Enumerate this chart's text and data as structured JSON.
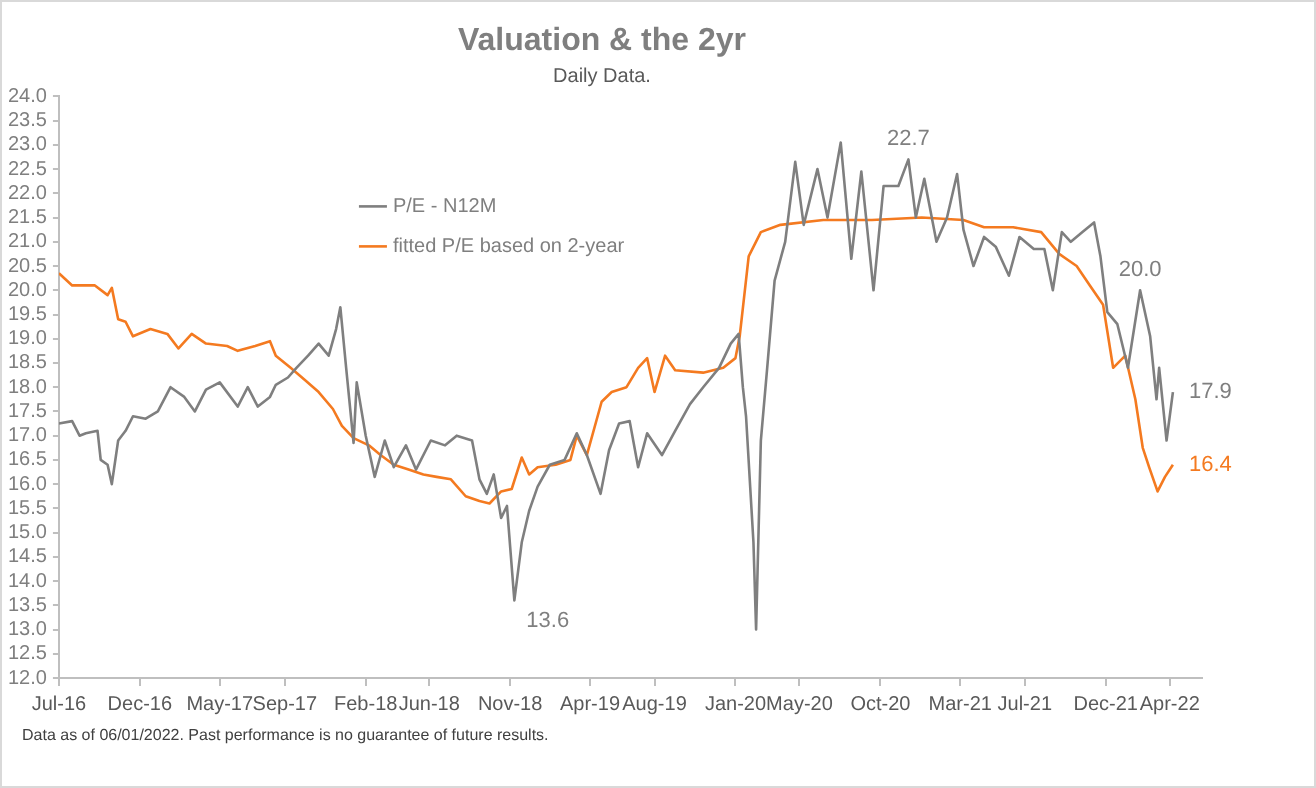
{
  "chart_data": {
    "type": "line",
    "title": "Valuation & the 2yr",
    "subtitle": "Daily Data.",
    "xlim": [
      "2016-07-01",
      "2022-06-01"
    ],
    "xticks": [
      {
        "value": "2016-07-01",
        "label": "Jul-16"
      },
      {
        "value": "2016-12-01",
        "label": "Dec-16"
      },
      {
        "value": "2017-05-01",
        "label": "May-17"
      },
      {
        "value": "2017-09-01",
        "label": "Sep-17"
      },
      {
        "value": "2018-02-01",
        "label": "Feb-18"
      },
      {
        "value": "2018-06-01",
        "label": "Jun-18"
      },
      {
        "value": "2018-11-01",
        "label": "Nov-18"
      },
      {
        "value": "2019-04-01",
        "label": "Apr-19"
      },
      {
        "value": "2019-08-01",
        "label": "Aug-19"
      },
      {
        "value": "2020-01-01",
        "label": "Jan-20"
      },
      {
        "value": "2020-05-01",
        "label": "May-20"
      },
      {
        "value": "2020-10-01",
        "label": "Oct-20"
      },
      {
        "value": "2021-03-01",
        "label": "Mar-21"
      },
      {
        "value": "2021-07-01",
        "label": "Jul-21"
      },
      {
        "value": "2021-12-01",
        "label": "Dec-21"
      },
      {
        "value": "2022-04-01",
        "label": "Apr-22"
      }
    ],
    "ylim": [
      12,
      24
    ],
    "yticks": [
      {
        "value": 12,
        "label": "12.0"
      },
      {
        "value": 12.5,
        "label": "12.5"
      },
      {
        "value": 13,
        "label": "13.0"
      },
      {
        "value": 13.5,
        "label": "13.5"
      },
      {
        "value": 14,
        "label": "14.0"
      },
      {
        "value": 14.5,
        "label": "14.5"
      },
      {
        "value": 15,
        "label": "15.0"
      },
      {
        "value": 15.5,
        "label": "15.5"
      },
      {
        "value": 16,
        "label": "16.0"
      },
      {
        "value": 16.5,
        "label": "16.5"
      },
      {
        "value": 17,
        "label": "17.0"
      },
      {
        "value": 17.5,
        "label": "17.5"
      },
      {
        "value": 18,
        "label": "18.0"
      },
      {
        "value": 18.5,
        "label": "18.5"
      },
      {
        "value": 19,
        "label": "19.0"
      },
      {
        "value": 19.5,
        "label": "19.5"
      },
      {
        "value": 20,
        "label": "20.0"
      },
      {
        "value": 20.5,
        "label": "20.5"
      },
      {
        "value": 21,
        "label": "21.0"
      },
      {
        "value": 21.5,
        "label": "21.5"
      },
      {
        "value": 22,
        "label": "22.0"
      },
      {
        "value": 22.5,
        "label": "22.5"
      },
      {
        "value": 23,
        "label": "23.0"
      },
      {
        "value": 23.5,
        "label": "23.5"
      },
      {
        "value": 24,
        "label": "24.0"
      }
    ],
    "grid": false,
    "legend": "top left",
    "marker": "none",
    "line_style": "solid",
    "series": [
      {
        "name": "P/E - N12M",
        "color": "#7f7f7f",
        "x": [
          "2016-07-01",
          "2016-07-26",
          "2016-08-09",
          "2016-08-21",
          "2016-09-12",
          "2016-09-18",
          "2016-10-01",
          "2016-10-09",
          "2016-10-21",
          "2016-11-04",
          "2016-11-18",
          "2016-12-12",
          "2017-01-04",
          "2017-01-28",
          "2017-02-23",
          "2017-03-15",
          "2017-04-05",
          "2017-05-01",
          "2017-06-04",
          "2017-06-23",
          "2017-07-12",
          "2017-08-04",
          "2017-08-15",
          "2017-09-07",
          "2017-09-23",
          "2017-10-15",
          "2017-11-04",
          "2017-11-23",
          "2017-12-07",
          "2017-12-15",
          "2017-12-26",
          "2018-01-09",
          "2018-01-15",
          "2018-02-01",
          "2018-02-18",
          "2018-03-09",
          "2018-03-26",
          "2018-04-18",
          "2018-05-07",
          "2018-06-04",
          "2018-07-01",
          "2018-07-23",
          "2018-08-21",
          "2018-09-04",
          "2018-09-18",
          "2018-10-01",
          "2018-10-15",
          "2018-10-26",
          "2018-11-09",
          "2018-11-23",
          "2018-12-07",
          "2018-12-23",
          "2019-01-15",
          "2019-02-12",
          "2019-03-07",
          "2019-03-26",
          "2019-04-21",
          "2019-05-07",
          "2019-05-26",
          "2019-06-15",
          "2019-07-01",
          "2019-07-18",
          "2019-08-15",
          "2019-09-09",
          "2019-10-07",
          "2019-11-01",
          "2019-12-01",
          "2019-12-23",
          "2020-01-07",
          "2020-01-15",
          "2020-01-21",
          "2020-02-04",
          "2020-02-09",
          "2020-02-18",
          "2020-03-01",
          "2020-03-15",
          "2020-04-04",
          "2020-04-23",
          "2020-05-09",
          "2020-06-04",
          "2020-06-23",
          "2020-07-18",
          "2020-08-07",
          "2020-08-26",
          "2020-09-18",
          "2020-10-07",
          "2020-11-04",
          "2020-11-23",
          "2020-12-07",
          "2020-12-23",
          "2021-01-15",
          "2021-02-04",
          "2021-02-23",
          "2021-03-07",
          "2021-03-26",
          "2021-04-15",
          "2021-05-07",
          "2021-06-01",
          "2021-06-21",
          "2021-07-18",
          "2021-08-07",
          "2021-08-23",
          "2021-09-09",
          "2021-09-26",
          "2021-10-18",
          "2021-11-09",
          "2021-11-21",
          "2021-12-04",
          "2021-12-23",
          "2022-01-12",
          "2022-02-04",
          "2022-02-23",
          "2022-03-07",
          "2022-03-12",
          "2022-03-26",
          "2022-04-07"
        ],
        "values": [
          17.25,
          17.3,
          17.0,
          17.05,
          17.1,
          16.5,
          16.4,
          16.0,
          16.9,
          17.1,
          17.4,
          17.35,
          17.5,
          18.0,
          17.8,
          17.5,
          17.95,
          18.1,
          17.6,
          18.0,
          17.6,
          17.8,
          18.05,
          18.2,
          18.4,
          18.65,
          18.9,
          18.65,
          19.2,
          19.65,
          18.4,
          16.85,
          18.1,
          17.0,
          16.15,
          16.9,
          16.35,
          16.8,
          16.3,
          16.9,
          16.8,
          17.0,
          16.9,
          16.1,
          15.8,
          16.2,
          15.3,
          15.55,
          13.6,
          14.8,
          15.45,
          15.95,
          16.4,
          16.5,
          17.05,
          16.6,
          15.8,
          16.7,
          17.25,
          17.3,
          16.35,
          17.05,
          16.6,
          17.1,
          17.65,
          18.0,
          18.4,
          18.9,
          19.1,
          18.0,
          17.4,
          14.8,
          13.0,
          16.9,
          18.4,
          20.2,
          21.0,
          22.65,
          21.35,
          22.5,
          21.5,
          23.05,
          20.65,
          22.45,
          20.0,
          22.15,
          22.15,
          22.7,
          21.5,
          22.3,
          21.0,
          21.5,
          22.4,
          21.25,
          20.5,
          21.1,
          20.9,
          20.3,
          21.1,
          20.85,
          20.85,
          20.0,
          21.2,
          21.0,
          21.2,
          21.4,
          20.7,
          19.55,
          19.3,
          18.4,
          20.0,
          19.05,
          17.75,
          18.4,
          16.9,
          17.9
        ]
      },
      {
        "name": "fitted P/E based on 2-year",
        "color": "#f47a20",
        "x": [
          "2016-07-01",
          "2016-07-26",
          "2016-09-07",
          "2016-10-01",
          "2016-10-09",
          "2016-10-21",
          "2016-11-04",
          "2016-11-18",
          "2016-12-21",
          "2017-01-22",
          "2017-02-12",
          "2017-03-09",
          "2017-04-05",
          "2017-05-15",
          "2017-06-04",
          "2017-07-07",
          "2017-08-04",
          "2017-08-15",
          "2017-09-12",
          "2017-10-09",
          "2017-11-04",
          "2017-12-01",
          "2017-12-18",
          "2018-01-09",
          "2018-02-07",
          "2018-03-01",
          "2018-03-26",
          "2018-04-23",
          "2018-05-21",
          "2018-06-15",
          "2018-07-12",
          "2018-08-09",
          "2018-09-04",
          "2018-09-23",
          "2018-10-15",
          "2018-11-04",
          "2018-11-23",
          "2018-12-07",
          "2018-12-23",
          "2019-01-26",
          "2019-02-23",
          "2019-03-07",
          "2019-03-26",
          "2019-04-23",
          "2019-05-12",
          "2019-06-09",
          "2019-07-01",
          "2019-07-18",
          "2019-08-01",
          "2019-08-21",
          "2019-09-09",
          "2019-11-01",
          "2019-12-09",
          "2020-01-01",
          "2020-01-09",
          "2020-01-26",
          "2020-02-18",
          "2020-03-26",
          "2020-06-15",
          "2020-09-15",
          "2020-12-18",
          "2021-03-07",
          "2021-04-15",
          "2021-06-09",
          "2021-08-01",
          "2021-09-04",
          "2021-10-07",
          "2021-11-01",
          "2021-11-26",
          "2021-12-15",
          "2022-01-07",
          "2022-01-26",
          "2022-02-09",
          "2022-02-21",
          "2022-03-09",
          "2022-03-23",
          "2022-04-07"
        ],
        "values": [
          20.35,
          20.1,
          20.1,
          19.9,
          20.05,
          19.4,
          19.35,
          19.05,
          19.2,
          19.1,
          18.8,
          19.1,
          18.9,
          18.85,
          18.75,
          18.85,
          18.95,
          18.65,
          18.4,
          18.15,
          17.9,
          17.55,
          17.2,
          16.95,
          16.8,
          16.6,
          16.4,
          16.3,
          16.2,
          16.15,
          16.1,
          15.75,
          15.65,
          15.6,
          15.85,
          15.9,
          16.55,
          16.2,
          16.35,
          16.4,
          16.5,
          17.0,
          16.6,
          17.7,
          17.9,
          18.0,
          18.4,
          18.6,
          17.9,
          18.65,
          18.35,
          18.3,
          18.4,
          18.6,
          19.05,
          20.7,
          21.2,
          21.35,
          21.45,
          21.45,
          21.5,
          21.45,
          21.3,
          21.3,
          21.2,
          20.75,
          20.5,
          20.1,
          19.7,
          18.4,
          18.65,
          17.75,
          16.75,
          16.35,
          15.85,
          16.15,
          16.4
        ]
      }
    ],
    "annotations": [
      {
        "text": "22.7",
        "x": "2020-11-23",
        "y": 22.7
      },
      {
        "text": "13.6",
        "x": "2018-11-09",
        "y": 13.6
      },
      {
        "text": "20.0",
        "x": "2022-02-04",
        "y": 20.0
      },
      {
        "text": "17.9",
        "x": "2022-04-07",
        "y": 17.9
      },
      {
        "text": "16.4",
        "x": "2022-04-07",
        "y": 16.4
      },
      "Data as of 06/01/2022. Past performance is no guarantee of future results."
    ]
  }
}
